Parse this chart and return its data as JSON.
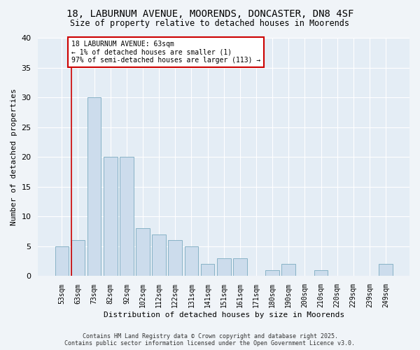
{
  "title": "18, LABURNUM AVENUE, MOORENDS, DONCASTER, DN8 4SF",
  "subtitle": "Size of property relative to detached houses in Moorends",
  "xlabel": "Distribution of detached houses by size in Moorends",
  "ylabel": "Number of detached properties",
  "categories": [
    "53sqm",
    "63sqm",
    "73sqm",
    "82sqm",
    "92sqm",
    "102sqm",
    "112sqm",
    "122sqm",
    "131sqm",
    "141sqm",
    "151sqm",
    "161sqm",
    "171sqm",
    "180sqm",
    "190sqm",
    "200sqm",
    "210sqm",
    "220sqm",
    "229sqm",
    "239sqm",
    "249sqm"
  ],
  "values": [
    5,
    6,
    30,
    20,
    20,
    8,
    7,
    6,
    5,
    2,
    3,
    3,
    0,
    1,
    2,
    0,
    1,
    0,
    0,
    0,
    2
  ],
  "bar_color": "#ccdcec",
  "bar_edge_color": "#7aaabf",
  "fig_bg_color": "#f0f4f8",
  "ax_bg_color": "#e4edf5",
  "grid_color": "#ffffff",
  "annotation_box_color": "#cc0000",
  "annotation_text_line1": "18 LABURNUM AVENUE: 63sqm",
  "annotation_text_line2": "← 1% of detached houses are smaller (1)",
  "annotation_text_line3": "97% of semi-detached houses are larger (113) →",
  "marker_line_color": "#cc0000",
  "ylim": [
    0,
    40
  ],
  "yticks": [
    0,
    5,
    10,
    15,
    20,
    25,
    30,
    35,
    40
  ],
  "footer_line1": "Contains HM Land Registry data © Crown copyright and database right 2025.",
  "footer_line2": "Contains public sector information licensed under the Open Government Licence v3.0."
}
